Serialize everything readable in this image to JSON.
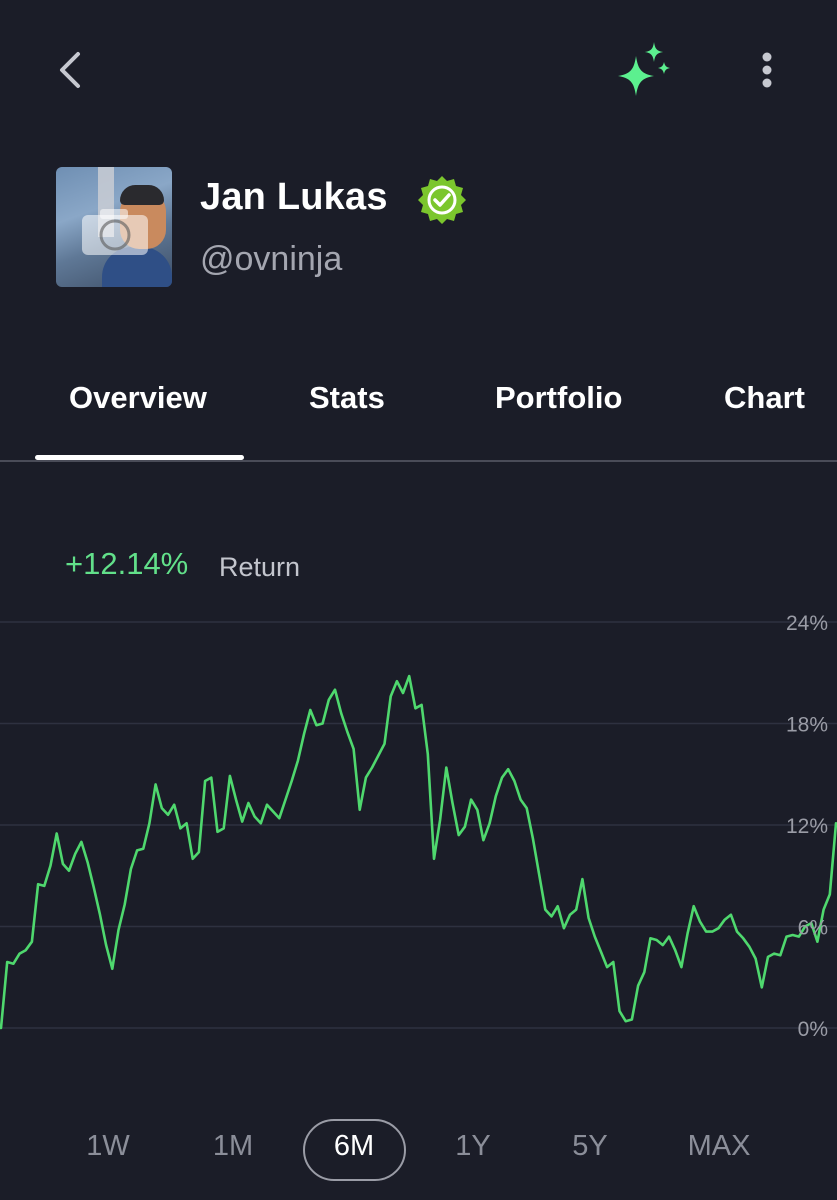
{
  "header": {
    "back_icon": "chevron-left-icon",
    "sparkle_icon": "sparkles-icon",
    "sparkle_color": "#5cf08f",
    "more_icon": "more-vertical-icon"
  },
  "profile": {
    "name": "Jan Lukas",
    "handle": "@ovninja",
    "verified_color": "#7bc62d"
  },
  "tabs": [
    {
      "label": "Overview",
      "active": true
    },
    {
      "label": "Stats",
      "active": false
    },
    {
      "label": "Portfolio",
      "active": false
    },
    {
      "label": "Chart",
      "active": false
    }
  ],
  "summary": {
    "return_value": "+12.14%",
    "return_label": "Return",
    "return_color": "#62e08a"
  },
  "chart_data": {
    "type": "line",
    "ylim": [
      0,
      24
    ],
    "y_ticks": [
      "0%",
      "6%",
      "12%",
      "18%",
      "24%"
    ],
    "grid": true,
    "line_color": "#4fd86e",
    "values": [
      0.0,
      3.9,
      3.8,
      4.4,
      4.6,
      5.1,
      8.5,
      8.4,
      9.6,
      11.5,
      9.7,
      9.3,
      10.3,
      11.0,
      9.8,
      8.3,
      6.7,
      4.9,
      3.5,
      5.8,
      7.3,
      9.4,
      10.5,
      10.6,
      12.1,
      14.4,
      13.0,
      12.6,
      13.2,
      11.8,
      12.1,
      10.0,
      10.4,
      14.6,
      14.8,
      11.6,
      11.8,
      14.9,
      13.5,
      12.2,
      13.3,
      12.5,
      12.1,
      13.2,
      12.8,
      12.4,
      13.5,
      14.6,
      15.8,
      17.4,
      18.8,
      17.9,
      18.0,
      19.4,
      20.0,
      18.6,
      17.5,
      16.5,
      12.9,
      14.8,
      15.4,
      16.1,
      16.8,
      19.6,
      20.5,
      19.8,
      20.8,
      18.9,
      19.1,
      16.2,
      10.0,
      12.3,
      15.4,
      13.3,
      11.4,
      11.9,
      13.5,
      12.9,
      11.1,
      12.1,
      13.7,
      14.8,
      15.3,
      14.6,
      13.5,
      13.0,
      11.2,
      9.1,
      7.0,
      6.6,
      7.2,
      5.9,
      6.7,
      7.0,
      8.8,
      6.5,
      5.4,
      4.5,
      3.6,
      3.9,
      1.0,
      0.4,
      0.5,
      2.5,
      3.3,
      5.3,
      5.2,
      4.9,
      5.4,
      4.6,
      3.6,
      5.6,
      7.2,
      6.3,
      5.7,
      5.7,
      5.9,
      6.4,
      6.7,
      5.7,
      5.3,
      4.8,
      4.1,
      2.4,
      4.2,
      4.4,
      4.3,
      5.4,
      5.5,
      5.4,
      6.0,
      6.2,
      5.1,
      7.0,
      7.9,
      12.1
    ]
  },
  "periods": [
    {
      "label": "1W",
      "active": false
    },
    {
      "label": "1M",
      "active": false
    },
    {
      "label": "6M",
      "active": true
    },
    {
      "label": "1Y",
      "active": false
    },
    {
      "label": "5Y",
      "active": false
    },
    {
      "label": "MAX",
      "active": false
    }
  ]
}
